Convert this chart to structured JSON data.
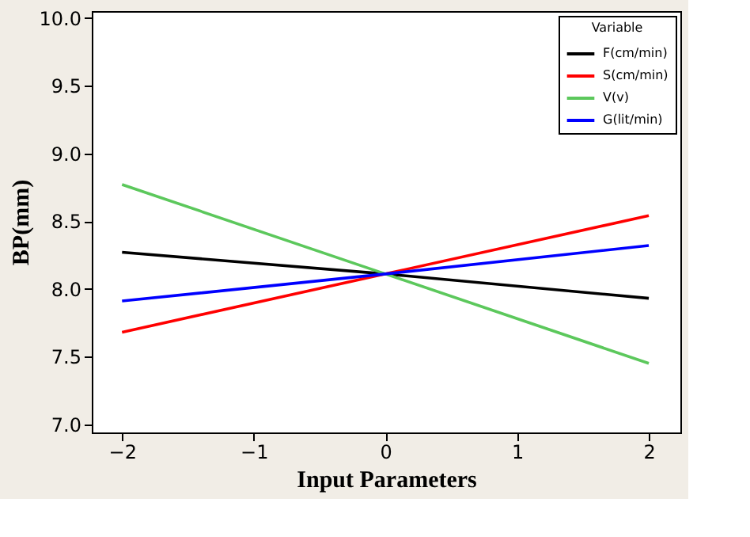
{
  "chart_data": {
    "type": "line",
    "xlabel": "Input Parameters",
    "ylabel": "BP(mm)",
    "legend_title": "Variable",
    "x": [
      -2,
      0,
      2
    ],
    "series": [
      {
        "name": "F(cm/min)",
        "color": "#000000",
        "values": [
          8.27,
          8.11,
          7.93
        ]
      },
      {
        "name": "S(cm/min)",
        "color": "#ff0000",
        "values": [
          7.68,
          8.11,
          8.54
        ]
      },
      {
        "name": "V(v)",
        "color": "#5cc85c",
        "values": [
          8.77,
          8.11,
          7.45
        ]
      },
      {
        "name": "G(lit/min)",
        "color": "#0000ff",
        "values": [
          7.91,
          8.11,
          8.32
        ]
      }
    ],
    "xlim": [
      -2.23,
      2.24
    ],
    "xticks": [
      -2,
      -1,
      0,
      1,
      2
    ],
    "ylim": [
      6.94,
      10.05
    ],
    "yticks": [
      {
        "value": 7,
        "label": "7.0"
      },
      {
        "value": 7.5,
        "label": "7.5"
      },
      {
        "value": 8,
        "label": "8.0"
      },
      {
        "value": 8.5,
        "label": "8.5"
      },
      {
        "value": 9,
        "label": "9.0"
      },
      {
        "value": 9.5,
        "label": "9.5"
      },
      {
        "value": 10,
        "label": "10.0"
      }
    ],
    "grid": false,
    "legend": "top right",
    "marker": "none",
    "line_style": "solid"
  }
}
